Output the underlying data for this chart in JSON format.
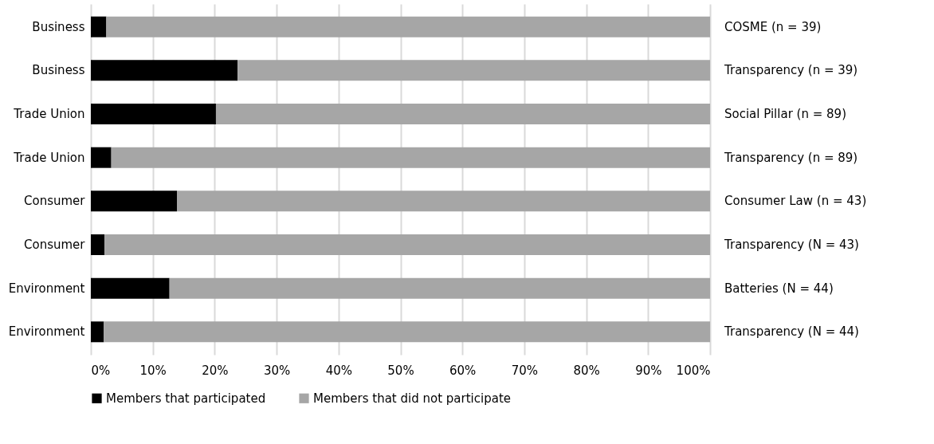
{
  "chart_data": {
    "type": "bar",
    "orientation": "horizontal",
    "stacked": true,
    "categories": [
      "Business",
      "Business",
      "Trade Union",
      "Trade Union",
      "Consumer",
      "Consumer",
      "Environment",
      "Environment"
    ],
    "y2_categories": [
      "COSME (n = 39)",
      "Transparency (n = 39)",
      "Social Pillar (n = 89)",
      "Transparency (n = 89)",
      "Consumer Law (n = 43)",
      "Transparency (N = 43)",
      "Batteries (N = 44)",
      "Transparency (N = 44)"
    ],
    "series": [
      {
        "name": "Members that participated",
        "color": "#000000",
        "values": [
          2.5,
          23.7,
          20.2,
          3.3,
          13.9,
          2.2,
          12.7,
          2.1
        ]
      },
      {
        "name": "Members that did not participate",
        "color": "#a6a6a6",
        "values": [
          97.5,
          76.3,
          79.8,
          96.7,
          86.1,
          97.8,
          87.3,
          97.9
        ]
      }
    ],
    "xlim": [
      0,
      100
    ],
    "xticks": [
      {
        "value": 0,
        "label": "0%"
      },
      {
        "value": 10,
        "label": "10%"
      },
      {
        "value": 20,
        "label": "20%"
      },
      {
        "value": 30,
        "label": "30%"
      },
      {
        "value": 40,
        "label": "40%"
      },
      {
        "value": 50,
        "label": "50%"
      },
      {
        "value": 60,
        "label": "60%"
      },
      {
        "value": 70,
        "label": "70%"
      },
      {
        "value": 80,
        "label": "80%"
      },
      {
        "value": 90,
        "label": "90%"
      },
      {
        "value": 100,
        "label": "100%"
      }
    ],
    "grid": "x",
    "legend": "bottom"
  }
}
